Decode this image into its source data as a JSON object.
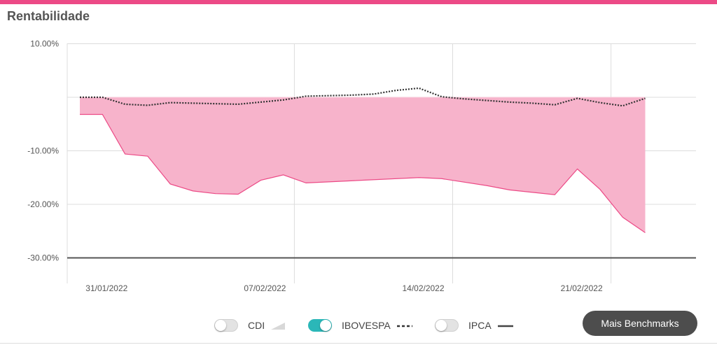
{
  "header": {
    "title": "Rentabilidade"
  },
  "colors": {
    "accent": "#ec4a86",
    "fund_fill": "#f7b3cb",
    "fund_line": "#ec4a86",
    "toggle_on": "#2bb7b8"
  },
  "legend": {
    "items": [
      {
        "label": "CDI",
        "enabled": false,
        "symbol": "area-icon"
      },
      {
        "label": "IBOVESPA",
        "enabled": true,
        "symbol": "dashed-line-icon"
      },
      {
        "label": "IPCA",
        "enabled": false,
        "symbol": "solid-line-icon"
      }
    ]
  },
  "actions": {
    "more_benchmarks": "Mais Benchmarks"
  },
  "chart_data": {
    "type": "area",
    "y_ticks": [
      "10.00%",
      "-10.00%",
      "-20.00%",
      "-30.00%"
    ],
    "ylim": [
      -30,
      10
    ],
    "x_ticks": [
      "31/01/2022",
      "07/02/2022",
      "14/02/2022",
      "21/02/2022"
    ],
    "x_tick_day_index": [
      1,
      8,
      15,
      22
    ],
    "series": [
      {
        "style": "area",
        "days": [
          0,
          1,
          2,
          3,
          4,
          5,
          6,
          7,
          8,
          9,
          10,
          11,
          15,
          16,
          18,
          19,
          21,
          22,
          23,
          24,
          25
        ],
        "values": [
          -3.2,
          -3.2,
          -10.6,
          -11.0,
          -16.2,
          -17.5,
          -18.0,
          -18.1,
          -15.5,
          -14.5,
          -16.0,
          -15.8,
          -15.0,
          -15.2,
          -16.5,
          -17.3,
          -18.2,
          -13.4,
          -17.2,
          -22.4,
          -25.3
        ]
      },
      {
        "name": "IBOVESPA",
        "style": "dotted",
        "days": [
          0,
          1,
          2,
          3,
          4,
          5,
          6,
          7,
          8,
          9,
          10,
          11,
          12,
          13,
          14,
          15,
          16,
          17,
          18,
          19,
          20,
          21,
          22,
          23,
          24,
          25
        ],
        "values": [
          0.0,
          0.0,
          -1.3,
          -1.5,
          -1.0,
          -1.1,
          -1.2,
          -1.3,
          -0.9,
          -0.5,
          0.2,
          0.3,
          0.4,
          0.6,
          1.3,
          1.7,
          0.1,
          -0.3,
          -0.6,
          -0.9,
          -1.1,
          -1.4,
          -0.2,
          -1.0,
          -1.6,
          -0.2
        ]
      }
    ],
    "grid": true
  }
}
